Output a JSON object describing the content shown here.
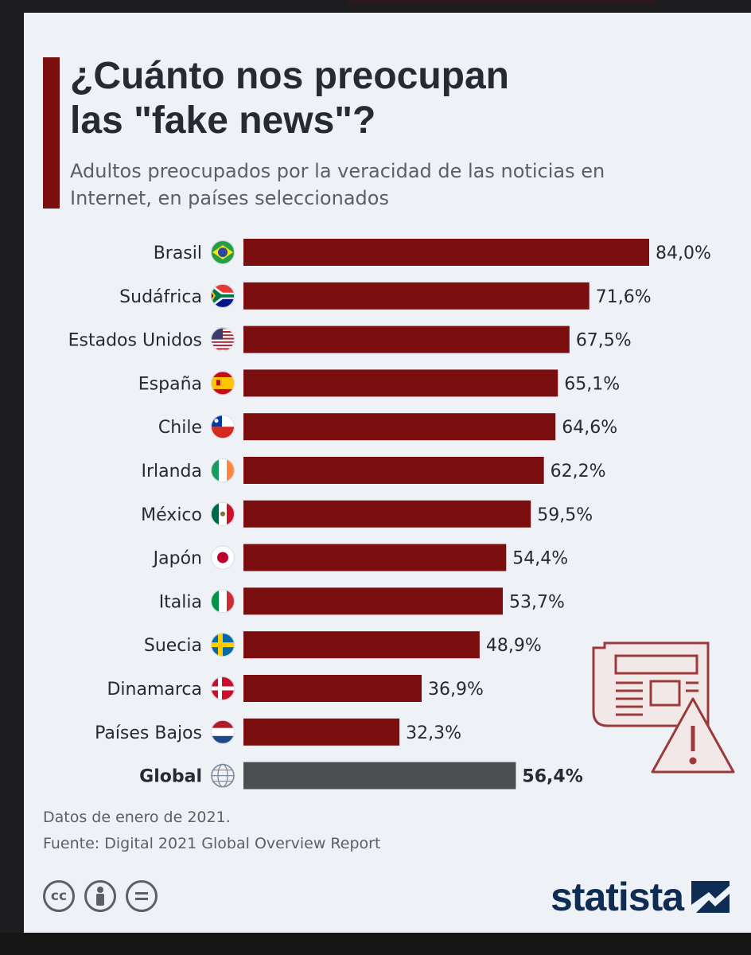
{
  "title_lines": [
    "¿Cuánto nos preocupan",
    "las \"fake news\"?"
  ],
  "subtitle": "Adultos preocupados por la veracidad de las noticias en Internet, en países seleccionados",
  "notes": {
    "data_date": "Datos de enero de 2021.",
    "source": "Fuente: Digital 2021 Global Overview Report"
  },
  "brand": {
    "name": "statista"
  },
  "license_icons": [
    "cc-icon",
    "attribution-icon",
    "no-derivatives-icon"
  ],
  "colors": {
    "bar": "#7b0f10",
    "global_bar": "#4b4d4e",
    "accent": "#7b0f10"
  },
  "chart_data": {
    "type": "bar",
    "orientation": "horizontal",
    "categories": [
      "Brasil",
      "Sudáfrica",
      "Estados Unidos",
      "España",
      "Chile",
      "Irlanda",
      "México",
      "Japón",
      "Italia",
      "Suecia",
      "Dinamarca",
      "Países Bajos",
      "Global"
    ],
    "values": [
      84.0,
      71.6,
      67.5,
      65.1,
      64.6,
      62.2,
      59.5,
      54.4,
      53.7,
      48.9,
      36.9,
      32.3,
      56.4
    ],
    "value_labels": [
      "84,0%",
      "71,6%",
      "67,5%",
      "65,1%",
      "64,6%",
      "62,2%",
      "59,5%",
      "54,4%",
      "53,7%",
      "48,9%",
      "36,9%",
      "32,3%",
      "56,4%"
    ],
    "flag_icons": [
      "brazil-flag-icon",
      "south-africa-flag-icon",
      "usa-flag-icon",
      "spain-flag-icon",
      "chile-flag-icon",
      "ireland-flag-icon",
      "mexico-flag-icon",
      "japan-flag-icon",
      "italy-flag-icon",
      "sweden-flag-icon",
      "denmark-flag-icon",
      "netherlands-flag-icon",
      "globe-icon"
    ],
    "highlight_category": "Global",
    "unit": "%",
    "xlim": [
      0,
      100
    ],
    "grid": false,
    "legend": "none"
  }
}
